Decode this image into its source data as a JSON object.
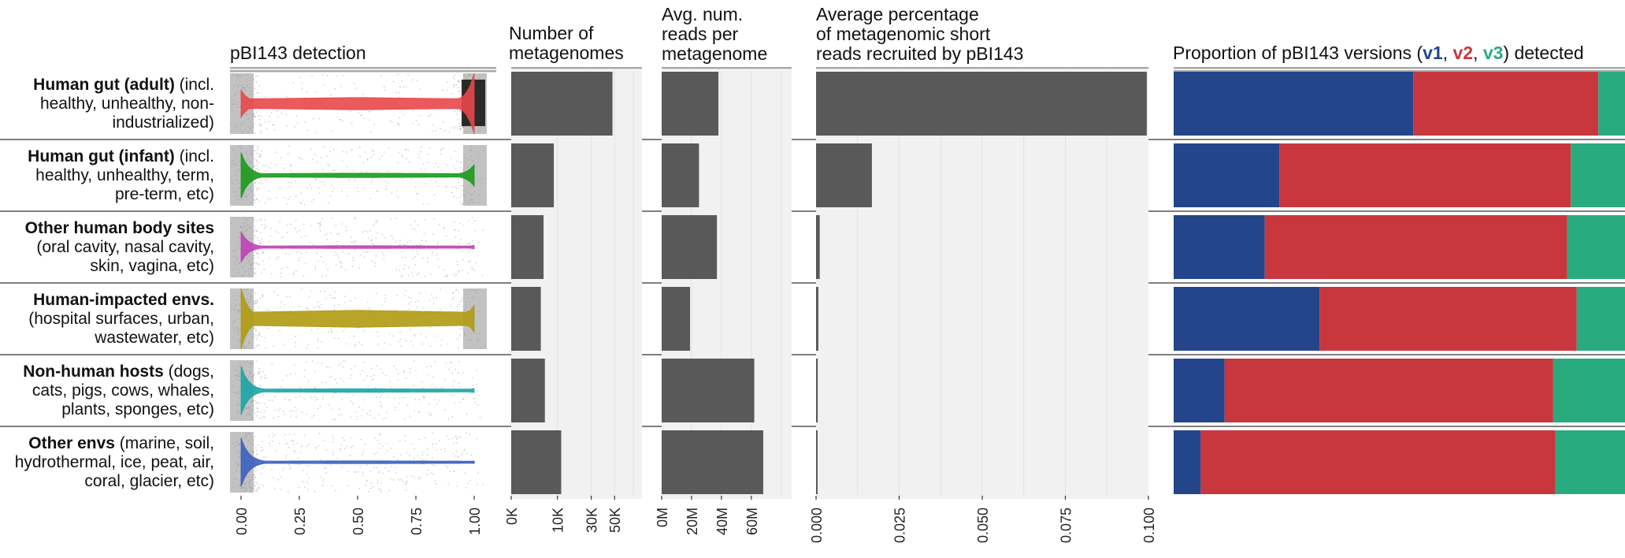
{
  "panel_titles": {
    "detection": "pBI143 detection",
    "metagenomes": [
      "Number of",
      "metagenomes"
    ],
    "reads": [
      "Avg. num.",
      "reads per",
      "metagenome"
    ],
    "percentage": [
      "Average percentage",
      "of metagenomic short",
      "reads recruited by pBI143"
    ],
    "proportion_prefix": "Proportion of pBI143 versions (",
    "proportion_v1": "v1",
    "proportion_sep1": ", ",
    "proportion_v2": "v2",
    "proportion_sep2": ", ",
    "proportion_v3": "v3",
    "proportion_suffix": ") detected"
  },
  "rows": [
    {
      "bold": "Human gut (adult)",
      "rest": " (incl. healthy, unhealthy, non-industrialized)"
    },
    {
      "bold": "Human gut (infant)",
      "rest": " (incl. healthy, unhealthy, term, pre-term, etc)"
    },
    {
      "bold": "Other human body sites",
      "rest": " (oral cavity, nasal cavity, skin, vagina, etc)"
    },
    {
      "bold": "Human-impacted envs.",
      "rest": " (hospital surfaces, urban, wastewater, etc)"
    },
    {
      "bold": "Non-human hosts",
      "rest": " (dogs, cats, pigs, cows, whales, plants, sponges, etc)"
    },
    {
      "bold": "Other envs",
      "rest": " (marine, soil, hydrothermal, ice, peat, air, coral, glacier, etc)"
    }
  ],
  "colors": {
    "bar": "#595959",
    "panel_bg": "#f1f1f1",
    "v1": "#25458a",
    "v2": "#c7373d",
    "v3": "#2aab7f",
    "violins": [
      "#e8474a",
      "#1a9a1a",
      "#c040b8",
      "#b09a10",
      "#1aa5a5",
      "#3a5fc0"
    ]
  },
  "chart_data": [
    {
      "type": "violin",
      "title": "pBI143 detection",
      "xlim": [
        0,
        1
      ],
      "x_ticks": [
        "0.00",
        "0.25",
        "0.50",
        "0.75",
        "1.00"
      ],
      "categories": [
        "Human gut (adult)",
        "Human gut (infant)",
        "Other human body sites",
        "Human-impacted envs.",
        "Non-human hosts",
        "Other envs"
      ],
      "density_low": [
        0.45,
        0.75,
        0.5,
        1.0,
        0.8,
        0.8
      ],
      "density_high": [
        1.0,
        0.35,
        0.06,
        0.45,
        0.07,
        0.04
      ],
      "neck_width": [
        0.14,
        0.04,
        0.02,
        0.2,
        0.03,
        0.02
      ]
    },
    {
      "type": "bar",
      "title": "Number of metagenomes",
      "x_scale": "sqrt",
      "x_ticks": [
        {
          "label": "0K",
          "value": 0
        },
        {
          "label": "10K",
          "value": 10000
        },
        {
          "label": "30K",
          "value": 30000
        },
        {
          "label": "50K",
          "value": 50000
        }
      ],
      "xlim": [
        0,
        80000
      ],
      "categories": [
        "Human gut (adult)",
        "Human gut (infant)",
        "Other human body sites",
        "Human-impacted envs.",
        "Non-human hosts",
        "Other envs"
      ],
      "values": [
        48000,
        8500,
        4900,
        4100,
        5300,
        11700
      ]
    },
    {
      "type": "bar",
      "title": "Avg. num. reads per metagenome",
      "x_ticks": [
        {
          "label": "0M",
          "value": 0
        },
        {
          "label": "20M",
          "value": 20000000
        },
        {
          "label": "40M",
          "value": 40000000
        },
        {
          "label": "60M",
          "value": 60000000
        }
      ],
      "xlim": [
        0,
        87000000
      ],
      "categories": [
        "Human gut (adult)",
        "Human gut (infant)",
        "Other human body sites",
        "Human-impacted envs.",
        "Non-human hosts",
        "Other envs"
      ],
      "values": [
        38000000,
        25000000,
        37000000,
        19000000,
        62000000,
        68000000
      ]
    },
    {
      "type": "bar",
      "title": "Average percentage of metagenomic short reads recruited by pBI143",
      "x_ticks": [
        {
          "label": "0.000",
          "value": 0
        },
        {
          "label": "0.025",
          "value": 0.025
        },
        {
          "label": "0.050",
          "value": 0.05
        },
        {
          "label": "0.075",
          "value": 0.075
        },
        {
          "label": "0.100",
          "value": 0.1
        }
      ],
      "xlim": [
        0,
        0.1
      ],
      "categories": [
        "Human gut (adult)",
        "Human gut (infant)",
        "Other human body sites",
        "Human-impacted envs.",
        "Non-human hosts",
        "Other envs"
      ],
      "values": [
        0.0995,
        0.0168,
        0.0011,
        0.0007,
        0.0005,
        0.0002
      ]
    },
    {
      "type": "stacked_bar",
      "title": "Proportion of pBI143 versions (v1, v2, v3) detected",
      "categories": [
        "Human gut (adult)",
        "Human gut (infant)",
        "Other human body sites",
        "Human-impacted envs.",
        "Non-human hosts",
        "Other envs"
      ],
      "series": [
        {
          "name": "v1",
          "values": [
            0.531,
            0.234,
            0.202,
            0.323,
            0.113,
            0.06
          ]
        },
        {
          "name": "v2",
          "values": [
            0.41,
            0.646,
            0.67,
            0.57,
            0.728,
            0.786
          ]
        },
        {
          "name": "v3",
          "values": [
            0.059,
            0.12,
            0.128,
            0.107,
            0.159,
            0.154
          ]
        }
      ]
    }
  ]
}
